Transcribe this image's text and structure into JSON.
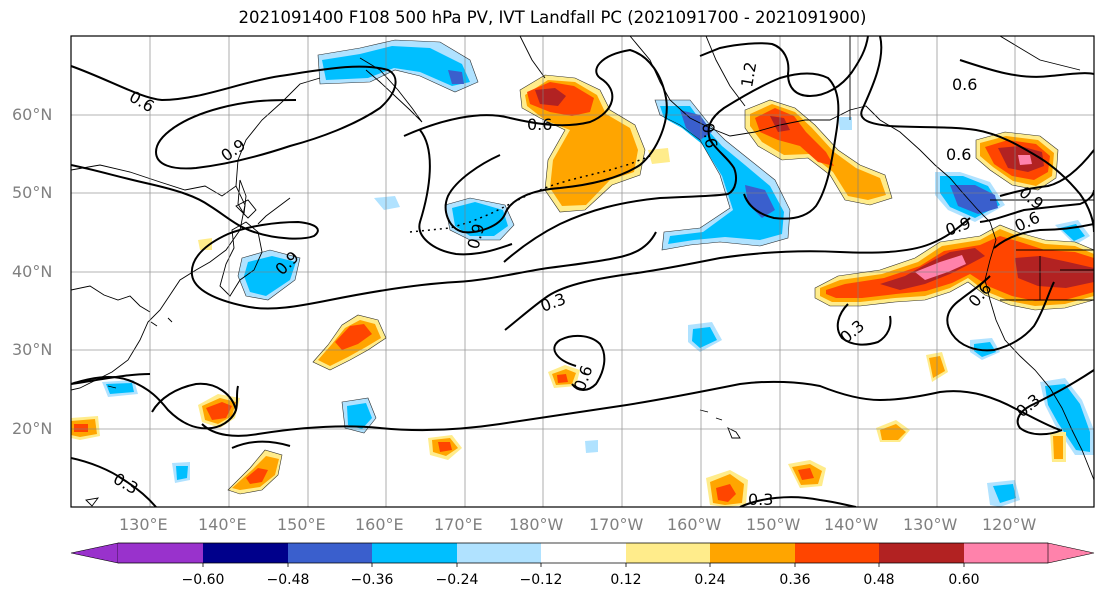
{
  "title": "2021091400 F108 500 hPa PV, IVT Landfall PC (2021091700 - 2021091900)",
  "chart_data": {
    "type": "heatmap",
    "title": "2021091400 F108 500 hPa PV, IVT Landfall PC (2021091700 - 2021091900)",
    "lat_ticks": [
      "20°N",
      "30°N",
      "40°N",
      "50°N",
      "60°N"
    ],
    "lon_ticks": [
      "130°E",
      "140°E",
      "150°E",
      "160°E",
      "170°E",
      "180°W",
      "170°W",
      "160°W",
      "150°W",
      "140°W",
      "130°W",
      "120°W"
    ],
    "grid": true,
    "colorbar": {
      "boundaries": [
        -0.72,
        -0.6,
        -0.48,
        -0.36,
        -0.24,
        -0.12,
        0.12,
        0.24,
        0.36,
        0.48,
        0.6,
        0.72
      ],
      "tick_labels": [
        "−0.60",
        "−0.48",
        "−0.36",
        "−0.24",
        "−0.12",
        "0.12",
        "0.24",
        "0.36",
        "0.48",
        "0.60"
      ],
      "colors": [
        "#9932cc",
        "#00008b",
        "#3a5fcd",
        "#00bfff",
        "#b0e2ff",
        "#ffffff",
        "#ffec8b",
        "#ffa500",
        "#ff4500",
        "#b22222",
        "#ff82ab"
      ],
      "extend": "both"
    },
    "contour_labels": [
      "0.6",
      "0.9",
      "0.6",
      "0.6",
      "1.2",
      "0.6",
      "0.6",
      "0.9",
      "0.9",
      "0.9",
      "0.9",
      "0.6",
      "0.6",
      "0.3",
      "0.3",
      "0.6",
      "0.3",
      "0.3",
      "0.3"
    ]
  }
}
